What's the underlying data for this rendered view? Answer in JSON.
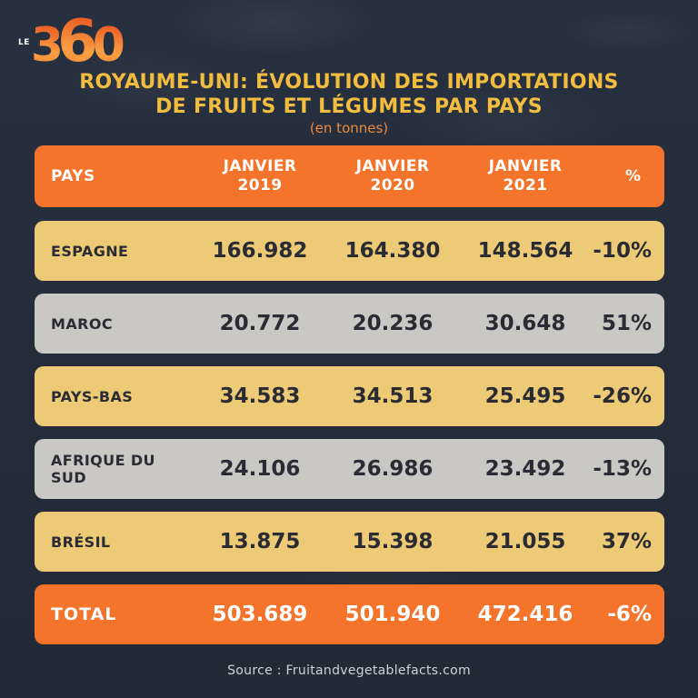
{
  "logo": {
    "prefix": "LE",
    "digits": [
      "3",
      "6",
      "0"
    ]
  },
  "title": {
    "line1": "ROYAUME-UNI: ÉVOLUTION DES IMPORTATIONS",
    "line2": "DE FRUITS ET LÉGUMES PAR PAYS",
    "subtitle": "(en tonnes)"
  },
  "table": {
    "header": {
      "country": "PAYS",
      "months": [
        {
          "line1": "JANVIER",
          "line2": "2019"
        },
        {
          "line1": "JANVIER",
          "line2": "2020"
        },
        {
          "line1": "JANVIER",
          "line2": "2021"
        }
      ],
      "percent": "%"
    },
    "rows": [
      {
        "country": "ESPAGNE",
        "jan2019": "166.982",
        "jan2020": "164.380",
        "jan2021": "148.564",
        "pct": "-10%"
      },
      {
        "country": "MAROC",
        "jan2019": "20.772",
        "jan2020": "20.236",
        "jan2021": "30.648",
        "pct": "51%"
      },
      {
        "country": "PAYS-BAS",
        "jan2019": "34.583",
        "jan2020": "34.513",
        "jan2021": "25.495",
        "pct": "-26%"
      },
      {
        "country": "AFRIQUE DU SUD",
        "jan2019": "24.106",
        "jan2020": "26.986",
        "jan2021": "23.492",
        "pct": "-13%"
      },
      {
        "country": "BRÉSIL",
        "jan2019": "13.875",
        "jan2020": "15.398",
        "jan2021": "21.055",
        "pct": "37%"
      }
    ],
    "total": {
      "label": "TOTAL",
      "jan2019": "503.689",
      "jan2020": "501.940",
      "jan2021": "472.416",
      "pct": "-6%"
    }
  },
  "source": "Source : Fruitandvegetablefacts.com",
  "colors": {
    "background": "#242c3a",
    "accent_orange": "#f4742c",
    "row_tan": "#edca75",
    "row_gray": "#c9c8c4",
    "title_yellow": "#f2bc3f",
    "subtitle_orange": "#ee8a3e",
    "dark_text": "#2b2b33",
    "source_text": "#ccd2db"
  },
  "chart_data": {
    "type": "table",
    "title": "Royaume-Uni: évolution des importations de fruits et légumes par pays",
    "units": "tonnes",
    "columns": [
      "Pays",
      "Janvier 2019",
      "Janvier 2020",
      "Janvier 2021",
      "%"
    ],
    "rows": [
      [
        "Espagne",
        166982,
        164380,
        148564,
        -10
      ],
      [
        "Maroc",
        20772,
        20236,
        30648,
        51
      ],
      [
        "Pays-Bas",
        34583,
        34513,
        25495,
        -26
      ],
      [
        "Afrique du Sud",
        24106,
        26986,
        23492,
        -13
      ],
      [
        "Brésil",
        13875,
        15398,
        21055,
        37
      ],
      [
        "Total",
        503689,
        501940,
        472416,
        -6
      ]
    ],
    "source": "Fruitandvegetablefacts.com"
  }
}
